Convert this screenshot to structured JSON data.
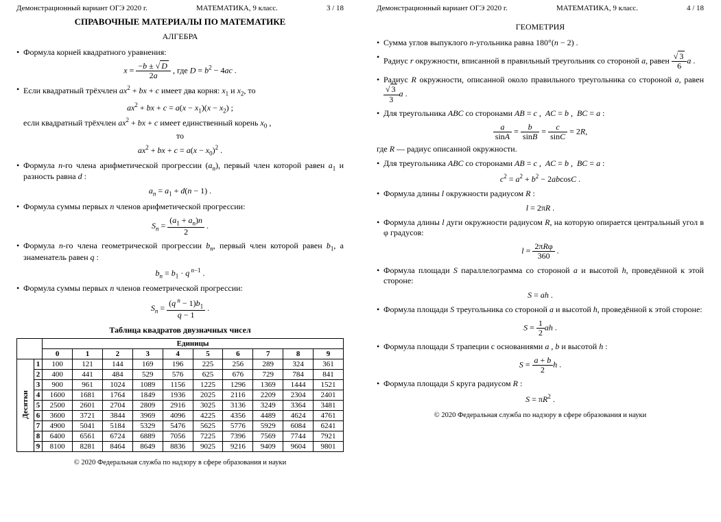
{
  "header": {
    "variant": "Демонстрационный вариант ОГЭ 2020 г.",
    "subject": "МАТЕМАТИКА, 9 класс.",
    "p3": "3 / 18",
    "p4": "4 / 18"
  },
  "titles": {
    "ref": "СПРАВОЧНЫЕ МАТЕРИАЛЫ ПО МАТЕМАТИКЕ",
    "alg": "АЛГЕБРА",
    "geo": "ГЕОМЕТРИЯ",
    "tbl": "Таблица квадратов двузначных чисел"
  },
  "algebra": {
    "b1": "Формула корней квадратного уравнения:",
    "b2a": "Если квадратный трёхчлен ",
    "b2b": " имеет два корня: ",
    "b2c": " и ",
    "b2d": ", то",
    "b2e": "если квадратный трёхчлен ",
    "b2f": " имеет единственный корень ",
    "b2g": "то",
    "b3a": "Формула ",
    "b3b": "-го члена арифметической прогрессии ",
    "b3c": ", первый член которой равен ",
    "b3d": " и разность равна ",
    "b4a": "Формула суммы первых ",
    "b4b": " членов арифметической прогрессии:",
    "b5a": "Формула ",
    "b5b": "-го члена геометрической прогрессии ",
    "b5c": ", первый член которой равен ",
    "b5d": ", а знаменатель равен ",
    "b6a": "Формула суммы первых ",
    "b6b": " членов геометрической прогрессии:"
  },
  "geometry": {
    "g1a": "Сумма углов выпуклого ",
    "g1b": "-угольника равна ",
    "g2a": "Радиус ",
    "g2b": " окружности, вписанной в правильный треугольник со стороной ",
    "g2c": ", равен ",
    "g3a": "Радиус ",
    "g3b": " окружности, описанной около правильного треугольника со стороной ",
    "g3c": ", равен ",
    "g4a": "Для треугольника ",
    "g4b": " со сторонами ",
    "g4r": " — радиус описанной окружности.",
    "g4wh": "где ",
    "g6a": "Формула длины ",
    "g6b": " окружности радиусом ",
    "g7a": "Формула длины ",
    "g7b": " дуги окружности радиусом ",
    "g7c": ", на которую опирается центральный угол в ",
    "g7d": " градусов:",
    "g8a": "Формула площади ",
    "g8b": " параллелограмма со стороной ",
    "g8c": " и высотой ",
    "g8d": ", проведённой к этой стороне:",
    "g9a": "Формула площади ",
    "g9b": " треугольника со стороной ",
    "g9c": " и высотой ",
    "g9d": ", проведённой к этой стороне:",
    "g10a": "Формула площади ",
    "g10b": " трапеции с основаниями ",
    "g10c": " и высотой ",
    "g11a": "Формула площади ",
    "g11b": " круга радиусом "
  },
  "table": {
    "unitsLabel": "Единицы",
    "tensLabel": "Десятки",
    "cols": [
      "0",
      "1",
      "2",
      "3",
      "4",
      "5",
      "6",
      "7",
      "8",
      "9"
    ],
    "rows": [
      {
        "h": "1",
        "v": [
          "100",
          "121",
          "144",
          "169",
          "196",
          "225",
          "256",
          "289",
          "324",
          "361"
        ]
      },
      {
        "h": "2",
        "v": [
          "400",
          "441",
          "484",
          "529",
          "576",
          "625",
          "676",
          "729",
          "784",
          "841"
        ]
      },
      {
        "h": "3",
        "v": [
          "900",
          "961",
          "1024",
          "1089",
          "1156",
          "1225",
          "1296",
          "1369",
          "1444",
          "1521"
        ]
      },
      {
        "h": "4",
        "v": [
          "1600",
          "1681",
          "1764",
          "1849",
          "1936",
          "2025",
          "2116",
          "2209",
          "2304",
          "2401"
        ]
      },
      {
        "h": "5",
        "v": [
          "2500",
          "2601",
          "2704",
          "2809",
          "2916",
          "3025",
          "3136",
          "3249",
          "3364",
          "3481"
        ]
      },
      {
        "h": "6",
        "v": [
          "3600",
          "3721",
          "3844",
          "3969",
          "4096",
          "4225",
          "4356",
          "4489",
          "4624",
          "4761"
        ]
      },
      {
        "h": "7",
        "v": [
          "4900",
          "5041",
          "5184",
          "5329",
          "5476",
          "5625",
          "5776",
          "5929",
          "6084",
          "6241"
        ]
      },
      {
        "h": "8",
        "v": [
          "6400",
          "6561",
          "6724",
          "6889",
          "7056",
          "7225",
          "7396",
          "7569",
          "7744",
          "7921"
        ]
      },
      {
        "h": "9",
        "v": [
          "8100",
          "8281",
          "8464",
          "8649",
          "8836",
          "9025",
          "9216",
          "9409",
          "9604",
          "9801"
        ]
      }
    ]
  },
  "footer": "© 2020 Федеральная служба по надзору в сфере образования и науки"
}
